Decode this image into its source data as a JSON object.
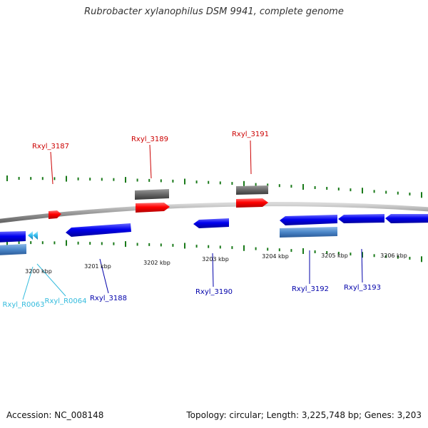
{
  "title": "Rubrobacter xylanophilus DSM 9941, complete genome",
  "footer": {
    "accession": "Accession: NC_008148",
    "topology": "Topology: circular; Length: 3,225,748 bp; Genes: 3,203"
  },
  "colors": {
    "forward_gene": "#ff0000",
    "forward_label": "#cc0000",
    "reverse_gene": "#0000ee",
    "reverse_label": "#0000aa",
    "rna_gene": "#4a86c8",
    "rna_label": "#33bbdd",
    "gray_feature": "#666666",
    "tick": "#1a7a1a",
    "backbone": "#999999"
  },
  "scale_labels": [
    {
      "text": "3200 kbp",
      "kbp": 3200
    },
    {
      "text": "3201 kbp",
      "kbp": 3201
    },
    {
      "text": "3202 kbp",
      "kbp": 3202
    },
    {
      "text": "3203 kbp",
      "kbp": 3203
    },
    {
      "text": "3204 kbp",
      "kbp": 3204
    },
    {
      "text": "3205 kbp",
      "kbp": 3205
    },
    {
      "text": "3206 kbp",
      "kbp": 3206
    }
  ],
  "gene_labels": [
    {
      "id": "Rxyl_3187",
      "text": "Rxyl_3187",
      "strand": "forward"
    },
    {
      "id": "Rxyl_3189",
      "text": "Rxyl_3189",
      "strand": "forward"
    },
    {
      "id": "Rxyl_3191",
      "text": "Rxyl_3191",
      "strand": "forward"
    },
    {
      "id": "Rxyl_R0063",
      "text": "Rxyl_R0063",
      "strand": "rna"
    },
    {
      "id": "Rxyl_R0064",
      "text": "Rxyl_R0064",
      "strand": "rna"
    },
    {
      "id": "Rxyl_3188",
      "text": "Rxyl_3188",
      "strand": "reverse"
    },
    {
      "id": "Rxyl_3190",
      "text": "Rxyl_3190",
      "strand": "reverse"
    },
    {
      "id": "Rxyl_3192",
      "text": "Rxyl_3192",
      "strand": "reverse"
    },
    {
      "id": "Rxyl_3193",
      "text": "Rxyl_3193",
      "strand": "reverse"
    }
  ]
}
